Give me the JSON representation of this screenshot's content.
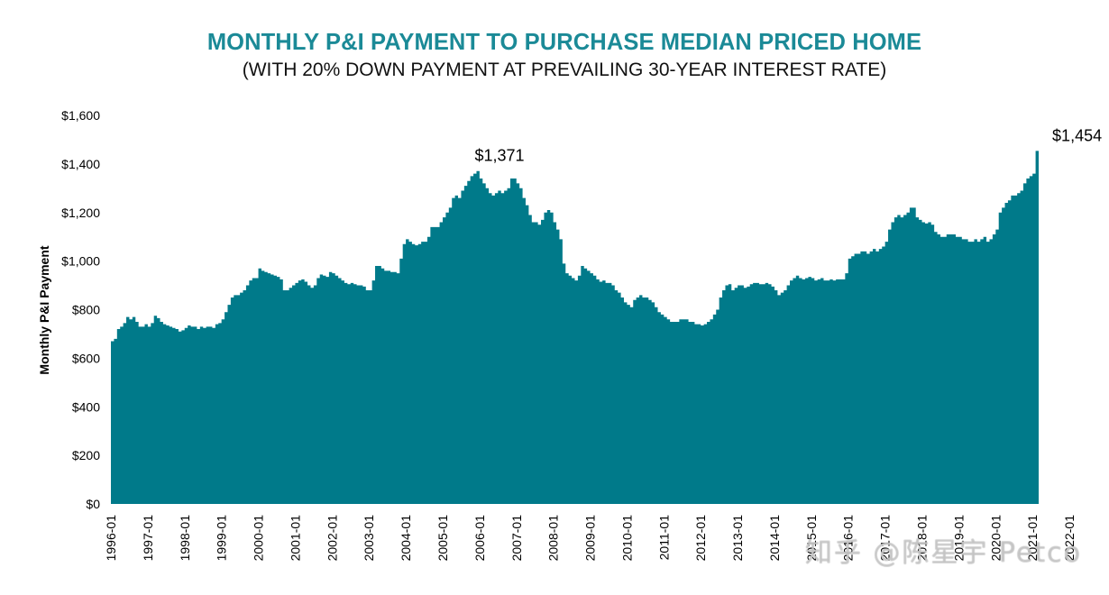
{
  "chart_data": {
    "type": "area",
    "title": "MONTHLY P&I PAYMENT TO PURCHASE MEDIAN PRICED HOME",
    "subtitle": "(WITH 20% DOWN PAYMENT AT PREVAILING 30-YEAR INTEREST RATE)",
    "ylabel": "Monthly P&I Payment",
    "xlabel": "",
    "ylim": [
      0,
      1600
    ],
    "yticks": [
      "$0",
      "$200",
      "$400",
      "$600",
      "$800",
      "$1,000",
      "$1,200",
      "$1,400",
      "$1,600"
    ],
    "xticks": [
      "1996-01",
      "1997-01",
      "1998-01",
      "1999-01",
      "2000-01",
      "2001-01",
      "2002-01",
      "2003-01",
      "2004-01",
      "2005-01",
      "2006-01",
      "2007-01",
      "2008-01",
      "2009-01",
      "2010-01",
      "2011-01",
      "2012-01",
      "2013-01",
      "2014-01",
      "2015-01",
      "2016-01",
      "2017-01",
      "2018-01",
      "2019-01",
      "2020-01",
      "2021-01",
      "2022-01"
    ],
    "color": "#007a8a",
    "title_color": "#1b8a97",
    "grid": false,
    "annotations": [
      {
        "label": "$1,371",
        "x": "2006-07",
        "value": 1371
      },
      {
        "label": "$1,454",
        "x": "2022-03",
        "value": 1454
      }
    ],
    "series": [
      {
        "start": "1996-01",
        "frequency": "monthly",
        "values": [
          670,
          680,
          720,
          730,
          745,
          770,
          760,
          770,
          750,
          730,
          730,
          740,
          730,
          745,
          775,
          765,
          750,
          740,
          735,
          730,
          725,
          720,
          710,
          715,
          725,
          735,
          730,
          730,
          720,
          730,
          725,
          730,
          730,
          725,
          740,
          745,
          760,
          790,
          820,
          850,
          860,
          860,
          870,
          880,
          900,
          920,
          930,
          930,
          970,
          960,
          955,
          950,
          945,
          940,
          935,
          925,
          880,
          880,
          890,
          900,
          910,
          920,
          925,
          915,
          900,
          890,
          900,
          930,
          945,
          940,
          935,
          955,
          950,
          940,
          930,
          920,
          910,
          905,
          910,
          905,
          900,
          900,
          895,
          880,
          880,
          920,
          980,
          980,
          970,
          960,
          960,
          955,
          955,
          950,
          1010,
          1070,
          1090,
          1080,
          1070,
          1065,
          1070,
          1080,
          1080,
          1100,
          1140,
          1140,
          1140,
          1160,
          1180,
          1200,
          1220,
          1260,
          1270,
          1260,
          1290,
          1310,
          1330,
          1350,
          1360,
          1371,
          1340,
          1320,
          1300,
          1280,
          1270,
          1280,
          1290,
          1280,
          1290,
          1300,
          1340,
          1340,
          1320,
          1300,
          1260,
          1230,
          1190,
          1160,
          1160,
          1150,
          1170,
          1200,
          1210,
          1200,
          1160,
          1130,
          1090,
          990,
          950,
          940,
          930,
          920,
          940,
          980,
          970,
          960,
          950,
          940,
          925,
          915,
          920,
          910,
          910,
          900,
          880,
          870,
          850,
          830,
          820,
          810,
          840,
          850,
          860,
          850,
          850,
          840,
          830,
          810,
          790,
          780,
          770,
          760,
          750,
          750,
          750,
          760,
          760,
          760,
          750,
          750,
          740,
          740,
          735,
          740,
          750,
          760,
          780,
          800,
          850,
          880,
          900,
          905,
          880,
          890,
          900,
          900,
          890,
          895,
          905,
          910,
          910,
          905,
          905,
          910,
          905,
          895,
          880,
          860,
          870,
          880,
          900,
          920,
          930,
          940,
          930,
          925,
          930,
          935,
          930,
          920,
          925,
          930,
          920,
          920,
          925,
          920,
          925,
          925,
          925,
          950,
          1010,
          1020,
          1030,
          1030,
          1040,
          1040,
          1030,
          1040,
          1050,
          1040,
          1050,
          1060,
          1080,
          1130,
          1160,
          1180,
          1190,
          1180,
          1190,
          1200,
          1220,
          1220,
          1180,
          1170,
          1160,
          1155,
          1160,
          1150,
          1120,
          1110,
          1100,
          1100,
          1110,
          1110,
          1110,
          1100,
          1100,
          1090,
          1090,
          1080,
          1080,
          1090,
          1080,
          1090,
          1100,
          1080,
          1090,
          1110,
          1130,
          1200,
          1220,
          1240,
          1250,
          1270,
          1270,
          1280,
          1290,
          1320,
          1340,
          1350,
          1360,
          1454
        ]
      }
    ]
  },
  "watermark": "知乎 @陈星宇 Petco"
}
